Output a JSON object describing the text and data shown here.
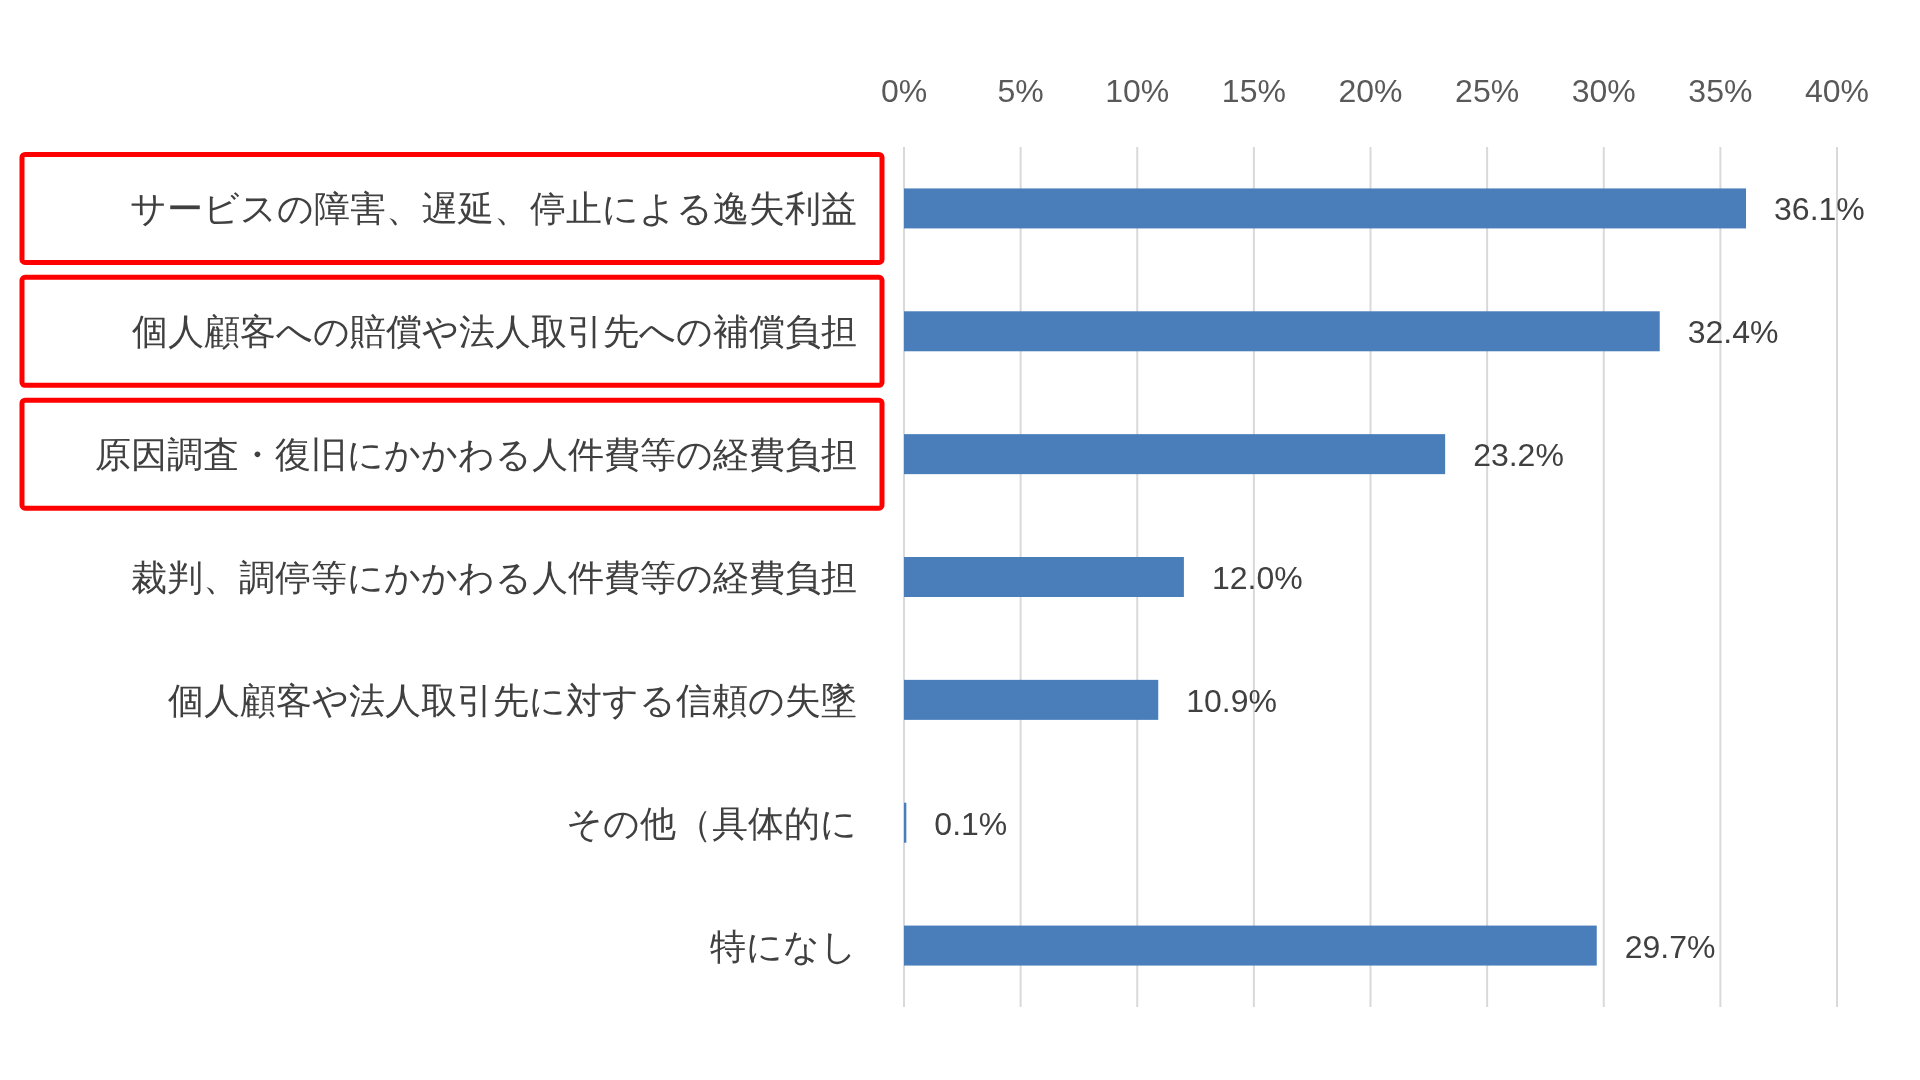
{
  "chart_data": {
    "type": "bar",
    "orientation": "horizontal",
    "categories": [
      "サービスの障害、遅延、停止による逸失利益",
      "個人顧客への賠償や法人取引先への補償負担",
      "原因調査・復旧にかかわる人件費等の経費負担",
      "裁判、調停等にかかわる人件費等の経費負担",
      "個人顧客や法人取引先に対する信頼の失墜",
      "その他（具体的に",
      "特になし"
    ],
    "values": [
      36.1,
      32.4,
      23.2,
      12.0,
      10.9,
      0.1,
      29.7
    ],
    "value_labels": [
      "36.1%",
      "32.4%",
      "23.2%",
      "12.0%",
      "10.9%",
      "0.1%",
      "29.7%"
    ],
    "color": "#4a7ebb",
    "xlim": [
      0,
      40
    ],
    "xticks": [
      {
        "value": 0,
        "label": "0%"
      },
      {
        "value": 5,
        "label": "5%"
      },
      {
        "value": 10,
        "label": "10%"
      },
      {
        "value": 15,
        "label": "15%"
      },
      {
        "value": 20,
        "label": "20%"
      },
      {
        "value": 25,
        "label": "25%"
      },
      {
        "value": 30,
        "label": "30%"
      },
      {
        "value": 35,
        "label": "35%"
      },
      {
        "value": 40,
        "label": "40%"
      }
    ],
    "grid": "x"
  }
}
